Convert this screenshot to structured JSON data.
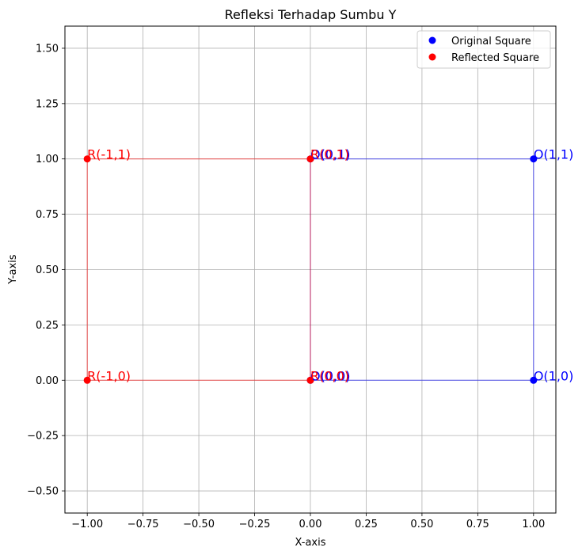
{
  "chart_data": {
    "type": "scatter",
    "title": "Refleksi Terhadap Sumbu Y",
    "xlabel": "X-axis",
    "ylabel": "Y-axis",
    "xlim": [
      -1.1,
      1.1
    ],
    "ylim": [
      -0.6,
      1.6
    ],
    "xticks": [
      -1.0,
      -0.75,
      -0.5,
      -0.25,
      0.0,
      0.25,
      0.5,
      0.75,
      1.0
    ],
    "xtick_labels": [
      "−1.00",
      "−0.75",
      "−0.50",
      "−0.25",
      "0.00",
      "0.25",
      "0.50",
      "0.75",
      "1.00"
    ],
    "yticks": [
      -0.5,
      -0.25,
      0.0,
      0.25,
      0.5,
      0.75,
      1.0,
      1.25,
      1.5
    ],
    "ytick_labels": [
      "−0.50",
      "−0.25",
      "0.00",
      "0.25",
      "0.50",
      "0.75",
      "1.00",
      "1.25",
      "1.50"
    ],
    "grid": true,
    "legend_position": "top-right",
    "series": [
      {
        "name": "Original Square",
        "color": "#0000ff",
        "points": [
          {
            "x": 0,
            "y": 0,
            "label": "O(0,0)"
          },
          {
            "x": 1,
            "y": 0,
            "label": "O(1,0)"
          },
          {
            "x": 1,
            "y": 1,
            "label": "O(1,1)"
          },
          {
            "x": 0,
            "y": 1,
            "label": "O(0,1)"
          }
        ]
      },
      {
        "name": "Reflected Square",
        "color": "#ff0000",
        "points": [
          {
            "x": 0,
            "y": 0,
            "label": "R(0,0)"
          },
          {
            "x": -1,
            "y": 0,
            "label": "R(-1,0)"
          },
          {
            "x": -1,
            "y": 1,
            "label": "R(-1,1)"
          },
          {
            "x": 0,
            "y": 1,
            "label": "R(0,1)"
          }
        ]
      }
    ]
  }
}
